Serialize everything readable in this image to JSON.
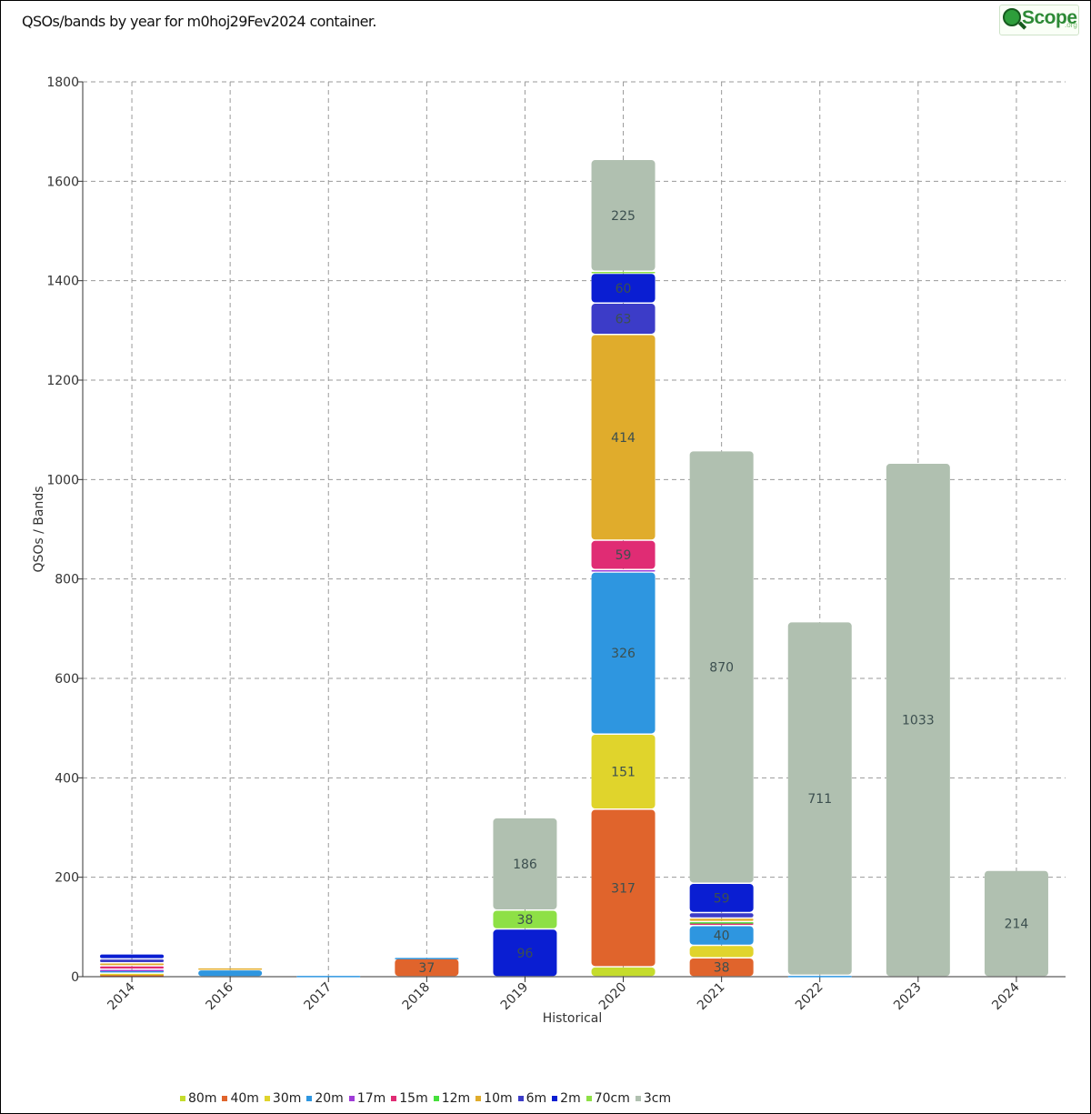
{
  "title": "QSOs/bands by year for m0hoj29Fev2024 container.",
  "logo": {
    "text": "Scope",
    "suffix": ".org"
  },
  "chart_data": {
    "type": "bar",
    "stacked": true,
    "title": "QSOs/bands by year for m0hoj29Fev2024 container.",
    "xlabel": "Historical",
    "ylabel": "QSOs / Bands",
    "ylim": [
      0,
      1800
    ],
    "yticks": [
      0,
      200,
      400,
      600,
      800,
      1000,
      1200,
      1400,
      1600,
      1800
    ],
    "grid": true,
    "legend_position": "bottom",
    "categories": [
      "2014",
      "2016",
      "2017",
      "2018",
      "2019",
      "2020",
      "2021",
      "2022",
      "2023",
      "2024"
    ],
    "series": [
      {
        "name": "80m",
        "color": "#c5dc2c",
        "values": [
          0,
          0,
          0,
          0,
          0,
          20,
          0,
          0,
          0,
          0
        ]
      },
      {
        "name": "40m",
        "color": "#e0642c",
        "values": [
          5,
          0,
          0,
          37,
          0,
          317,
          38,
          0,
          0,
          0
        ]
      },
      {
        "name": "30m",
        "color": "#e0d42c",
        "values": [
          2,
          0,
          0,
          0,
          0,
          151,
          25,
          0,
          0,
          0
        ]
      },
      {
        "name": "20m",
        "color": "#2e96e0",
        "values": [
          6,
          14,
          3,
          2,
          0,
          326,
          40,
          3,
          0,
          0
        ]
      },
      {
        "name": "17m",
        "color": "#a03cd8",
        "values": [
          2,
          0,
          0,
          0,
          0,
          5,
          0,
          0,
          0,
          0
        ]
      },
      {
        "name": "15m",
        "color": "#e02c74",
        "values": [
          7,
          0,
          0,
          0,
          0,
          59,
          6,
          0,
          0,
          0
        ]
      },
      {
        "name": "12m",
        "color": "#46e03c",
        "values": [
          0,
          0,
          0,
          0,
          0,
          0,
          2,
          0,
          0,
          0
        ]
      },
      {
        "name": "10m",
        "color": "#e0ac2c",
        "values": [
          6,
          4,
          0,
          0,
          0,
          414,
          7,
          0,
          0,
          0
        ]
      },
      {
        "name": "6m",
        "color": "#3c3cc8",
        "values": [
          8,
          0,
          0,
          0,
          0,
          63,
          11,
          0,
          0,
          0
        ]
      },
      {
        "name": "2m",
        "color": "#0a1ed2",
        "values": [
          10,
          0,
          0,
          0,
          96,
          60,
          59,
          0,
          0,
          0
        ]
      },
      {
        "name": "70cm",
        "color": "#8ee046",
        "values": [
          0,
          0,
          0,
          0,
          38,
          4,
          0,
          0,
          0,
          0
        ]
      },
      {
        "name": "3cm",
        "color": "#b0c0b0",
        "values": [
          0,
          0,
          0,
          0,
          186,
          225,
          870,
          711,
          1033,
          214
        ]
      }
    ]
  }
}
